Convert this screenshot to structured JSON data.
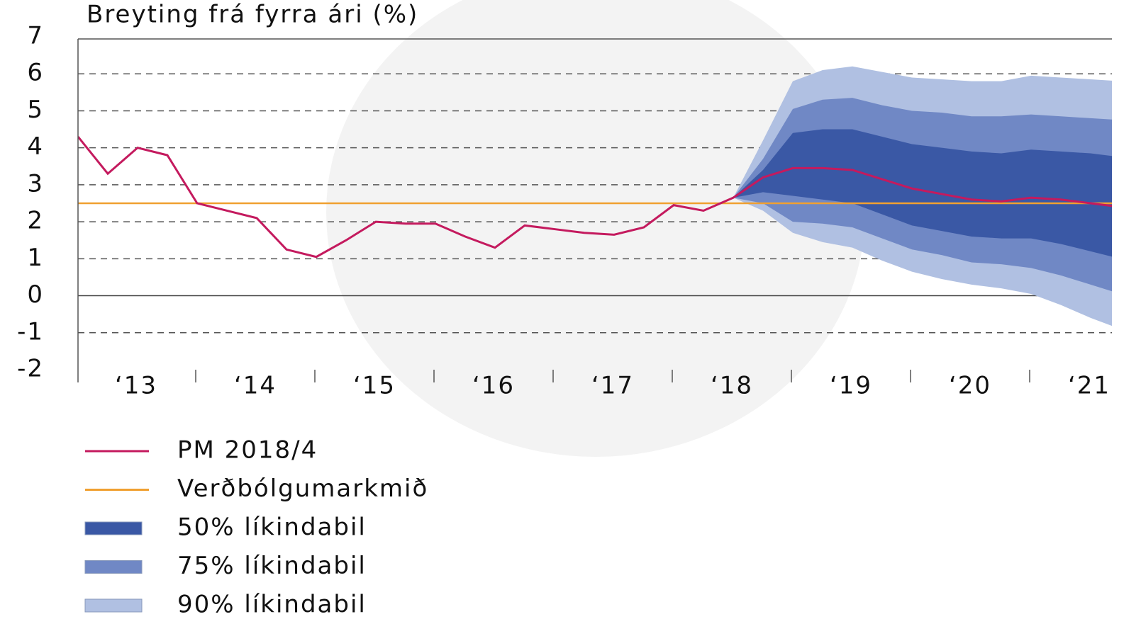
{
  "chart_data": {
    "type": "fan",
    "title": "Breyting frá fyrra ári (%)",
    "categories": [
      "‘13",
      "‘14",
      "‘15",
      "‘16",
      "‘17",
      "‘18",
      "‘19",
      "‘20",
      "‘21"
    ],
    "ylim": [
      -2,
      7
    ],
    "yticks": [
      -2,
      -1,
      0,
      1,
      2,
      3,
      4,
      5,
      6,
      7
    ],
    "grid": true,
    "series": [
      {
        "name": "PM 2018/4",
        "color": "#c41a5e",
        "values": [
          [
            4.3,
            3.3,
            4.0,
            3.8
          ],
          [
            2.5,
            2.3,
            2.1,
            1.25
          ],
          [
            1.05,
            1.5,
            2.0,
            1.95
          ],
          [
            1.95,
            1.6,
            1.3,
            1.9
          ],
          [
            1.8,
            1.7,
            1.65,
            1.85
          ],
          [
            2.45,
            2.3,
            2.65,
            3.2
          ],
          [
            3.45,
            3.45,
            3.4,
            3.15
          ],
          [
            2.9,
            2.75,
            2.6,
            2.55
          ],
          [
            2.65,
            2.6,
            2.5,
            2.4
          ]
        ]
      }
    ],
    "target": {
      "name": "Verðbólgumarkmið",
      "value": 2.5,
      "color": "#f0a030"
    },
    "bands": [
      {
        "name": "50% líkindabil",
        "color": "#3a58a5",
        "lower": [
          [
            null,
            null,
            null,
            null
          ],
          [
            null,
            null,
            null,
            null
          ],
          [
            null,
            null,
            null,
            null
          ],
          [
            null,
            null,
            null,
            null
          ],
          [
            null,
            null,
            null,
            null
          ],
          [
            null,
            null,
            2.65,
            2.8
          ],
          [
            2.7,
            2.6,
            2.5,
            2.2
          ],
          [
            1.9,
            1.75,
            1.6,
            1.55
          ],
          [
            1.55,
            1.4,
            1.2,
            1.0
          ]
        ],
        "upper": [
          [
            null,
            null,
            null,
            null
          ],
          [
            null,
            null,
            null,
            null
          ],
          [
            null,
            null,
            null,
            null
          ],
          [
            null,
            null,
            null,
            null
          ],
          [
            null,
            null,
            null,
            null
          ],
          [
            null,
            null,
            2.65,
            3.4
          ],
          [
            4.4,
            4.5,
            4.5,
            4.3
          ],
          [
            4.1,
            4.0,
            3.9,
            3.85
          ],
          [
            3.95,
            3.9,
            3.85,
            3.75
          ]
        ]
      },
      {
        "name": "75% líkindabil",
        "color": "#7088c5",
        "lower": [
          [
            null,
            null,
            null,
            null
          ],
          [
            null,
            null,
            null,
            null
          ],
          [
            null,
            null,
            null,
            null
          ],
          [
            null,
            null,
            null,
            null
          ],
          [
            null,
            null,
            null,
            null
          ],
          [
            null,
            null,
            2.65,
            2.5
          ],
          [
            2.0,
            1.95,
            1.85,
            1.55
          ],
          [
            1.25,
            1.1,
            0.9,
            0.85
          ],
          [
            0.75,
            0.55,
            0.3,
            0.05
          ]
        ],
        "upper": [
          [
            null,
            null,
            null,
            null
          ],
          [
            null,
            null,
            null,
            null
          ],
          [
            null,
            null,
            null,
            null
          ],
          [
            null,
            null,
            null,
            null
          ],
          [
            null,
            null,
            null,
            null
          ],
          [
            null,
            null,
            2.65,
            3.7
          ],
          [
            5.05,
            5.3,
            5.35,
            5.15
          ],
          [
            5.0,
            4.95,
            4.85,
            4.85
          ],
          [
            4.9,
            4.85,
            4.8,
            4.75
          ]
        ]
      },
      {
        "name": "90% líkindabil",
        "color": "#b0c0e2",
        "lower": [
          [
            null,
            null,
            null,
            null
          ],
          [
            null,
            null,
            null,
            null
          ],
          [
            null,
            null,
            null,
            null
          ],
          [
            null,
            null,
            null,
            null
          ],
          [
            null,
            null,
            null,
            null
          ],
          [
            null,
            null,
            2.65,
            2.3
          ],
          [
            1.7,
            1.45,
            1.3,
            0.95
          ],
          [
            0.65,
            0.45,
            0.3,
            0.2
          ],
          [
            0.05,
            -0.25,
            -0.6,
            -0.9
          ]
        ],
        "upper": [
          [
            null,
            null,
            null,
            null
          ],
          [
            null,
            null,
            null,
            null
          ],
          [
            null,
            null,
            null,
            null
          ],
          [
            null,
            null,
            null,
            null
          ],
          [
            null,
            null,
            null,
            null
          ],
          [
            null,
            null,
            2.65,
            4.2
          ],
          [
            5.8,
            6.1,
            6.2,
            6.05
          ],
          [
            5.9,
            5.85,
            5.8,
            5.8
          ],
          [
            5.95,
            5.9,
            5.85,
            5.8
          ]
        ]
      }
    ]
  }
}
